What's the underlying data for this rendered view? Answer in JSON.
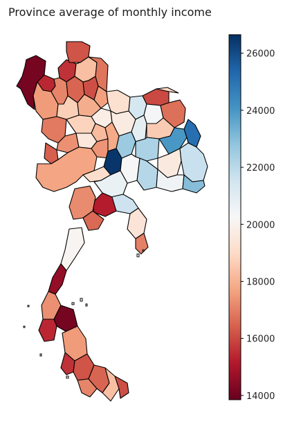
{
  "title": "Province average of monthly income",
  "colormap": {
    "name": "RdBu",
    "min": 13850,
    "max": 26650,
    "stops": [
      "#67001f",
      "#b2182b",
      "#d6604d",
      "#f4a582",
      "#fddbc7",
      "#f7f7f7",
      "#d1e5f0",
      "#92c5de",
      "#4393c3",
      "#2166ac",
      "#053061"
    ]
  },
  "colorbar": {
    "ticks": [
      {
        "value": 14000,
        "label": "14000"
      },
      {
        "value": 16000,
        "label": "16000"
      },
      {
        "value": 18000,
        "label": "18000"
      },
      {
        "value": 20000,
        "label": "20000"
      },
      {
        "value": 22000,
        "label": "22000"
      },
      {
        "value": 24000,
        "label": "24000"
      },
      {
        "value": 26000,
        "label": "26000"
      }
    ]
  },
  "region_values": [
    14100,
    15400,
    17500,
    15600,
    16200,
    17100,
    16500,
    18300,
    16100,
    16800,
    17600,
    18700,
    17900,
    16900,
    17300,
    18800,
    19800,
    18200,
    19500,
    17400,
    16400,
    19200,
    21400,
    16000,
    18900,
    20400,
    16700,
    19700,
    20900,
    18600,
    17800,
    22600,
    22300,
    24000,
    25100,
    19600,
    21700,
    22100,
    20500,
    23000,
    26500,
    20300,
    17700,
    19100,
    20700,
    21600,
    19400,
    17000,
    15200,
    17200,
    16600,
    20100,
    14600,
    17300
  ]
}
